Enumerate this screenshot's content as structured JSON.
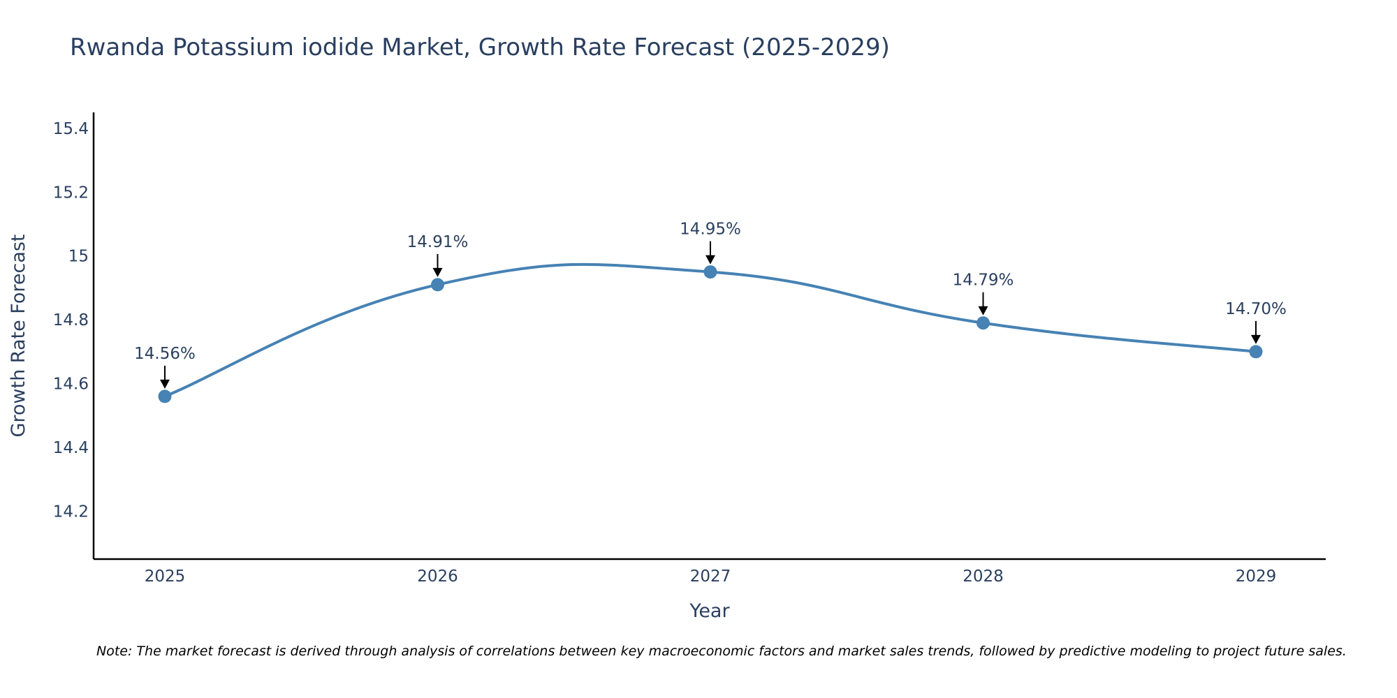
{
  "chart_data": {
    "type": "line",
    "title": "Rwanda Potassium iodide Market, Growth Rate Forecast (2025-2029)",
    "xlabel": "Year",
    "ylabel": "Growth Rate Forecast",
    "categories": [
      "2025",
      "2026",
      "2027",
      "2028",
      "2029"
    ],
    "values": [
      14.56,
      14.91,
      14.95,
      14.79,
      14.7
    ],
    "data_labels": [
      "14.56%",
      "14.91%",
      "14.95%",
      "14.79%",
      "14.70%"
    ],
    "y_ticks": [
      14.2,
      14.4,
      14.6,
      14.8,
      15,
      15.2,
      15.4
    ],
    "y_tick_labels": [
      "14.2",
      "14.4",
      "14.6",
      "14.8",
      "15",
      "15.2",
      "15.4"
    ],
    "ylim": [
      14.05,
      15.45
    ],
    "grid": false,
    "line_shape": "spline",
    "note": "Note: The market forecast is derived through analysis of correlations between key macroeconomic factors and market sales trends, followed by predictive modeling to project future sales.",
    "colors": {
      "line": "#4682b4",
      "text": "#2a3f5f",
      "axis": "#000000",
      "arrow": "#000000"
    }
  }
}
